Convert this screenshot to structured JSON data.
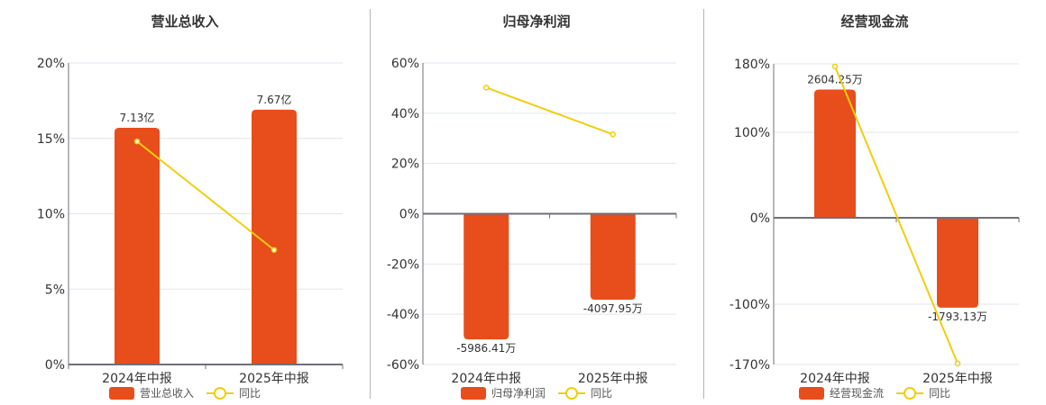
{
  "colors": {
    "bar": "#e84d1c",
    "line": "#f2cd0f",
    "grid": "#dfe5ee",
    "axis": "#6e7079",
    "text": "#333333",
    "divider": "#b5b5b5"
  },
  "legend_yoy_label": "同比",
  "chart_data": [
    {
      "type": "bar",
      "title": "营业总收入",
      "categories": [
        "2024年中报",
        "2025年中报"
      ],
      "series": [
        {
          "name": "营业总收入",
          "type": "bar",
          "values": [
            7.13,
            7.67
          ],
          "unit": "亿",
          "labels": [
            "7.13亿",
            "7.67亿"
          ]
        },
        {
          "name": "同比",
          "type": "line",
          "values": [
            14.8,
            7.6
          ],
          "unit": "%"
        }
      ],
      "yaxis": {
        "ticks": [
          0,
          5,
          10,
          15,
          20
        ],
        "tick_labels": [
          "0%",
          "5%",
          "10%",
          "15%",
          "20%"
        ],
        "ylim": [
          0,
          20
        ]
      },
      "bar_plot_values": [
        15.7,
        16.9
      ],
      "grid": true,
      "legend_position": "bottom"
    },
    {
      "type": "bar",
      "title": "归母净利润",
      "categories": [
        "2024年中报",
        "2025年中报"
      ],
      "series": [
        {
          "name": "归母净利润",
          "type": "bar",
          "values": [
            -5986.41,
            -4097.95
          ],
          "unit": "万",
          "labels": [
            "-5986.41万",
            "-4097.95万"
          ]
        },
        {
          "name": "同比",
          "type": "line",
          "values": [
            50.2,
            31.6
          ],
          "unit": "%"
        }
      ],
      "yaxis": {
        "ticks": [
          -60,
          -40,
          -20,
          0,
          20,
          40,
          60
        ],
        "tick_labels": [
          "-60%",
          "-40%",
          "-20%",
          "0%",
          "20%",
          "40%",
          "60%"
        ],
        "ylim": [
          -60,
          60
        ]
      },
      "bar_plot_values": [
        -50,
        -34.2
      ],
      "grid": true,
      "legend_position": "bottom"
    },
    {
      "type": "bar",
      "title": "经营现金流",
      "categories": [
        "2024年中报",
        "2025年中报"
      ],
      "series": [
        {
          "name": "经营现金流",
          "type": "bar",
          "values": [
            2604.25,
            -1793.13
          ],
          "unit": "万",
          "labels": [
            "2604.25万",
            "-1793.13万"
          ]
        },
        {
          "name": "同比",
          "type": "line",
          "values": [
            177,
            -168.8
          ],
          "unit": "%"
        }
      ],
      "yaxis": {
        "ticks": [
          -170,
          -100,
          0,
          100,
          180
        ],
        "tick_labels": [
          "-170%",
          "-100%",
          "0%",
          "100%",
          "180%"
        ],
        "ylim": [
          -170,
          180
        ]
      },
      "bar_plot_values": [
        150,
        -104
      ],
      "grid": true,
      "legend_position": "bottom"
    }
  ]
}
